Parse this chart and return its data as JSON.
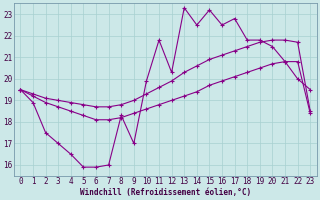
{
  "xlabel": "Windchill (Refroidissement éolien,°C)",
  "xlim": [
    -0.5,
    23.5
  ],
  "ylim": [
    15.5,
    23.5
  ],
  "xticks": [
    0,
    1,
    2,
    3,
    4,
    5,
    6,
    7,
    8,
    9,
    10,
    11,
    12,
    13,
    14,
    15,
    16,
    17,
    18,
    19,
    20,
    21,
    22,
    23
  ],
  "yticks": [
    16,
    17,
    18,
    19,
    20,
    21,
    22,
    23
  ],
  "bg_color": "#cce8e8",
  "line_color": "#880088",
  "grid_color": "#a8d0d0",
  "line1_y": [
    19.5,
    18.9,
    17.5,
    17.0,
    16.5,
    15.9,
    15.9,
    16.0,
    18.3,
    17.0,
    19.9,
    21.8,
    20.3,
    23.3,
    22.5,
    23.2,
    22.5,
    22.8,
    21.8,
    21.8,
    21.5,
    20.8,
    20.0,
    19.5
  ],
  "line2_y": [
    19.5,
    19.3,
    19.1,
    19.0,
    18.9,
    18.8,
    18.7,
    18.7,
    18.8,
    19.0,
    19.3,
    19.6,
    19.9,
    20.3,
    20.6,
    20.9,
    21.1,
    21.3,
    21.5,
    21.7,
    21.8,
    21.8,
    21.7,
    18.5
  ],
  "line3_y": [
    19.5,
    19.2,
    18.9,
    18.7,
    18.5,
    18.3,
    18.1,
    18.1,
    18.2,
    18.4,
    18.6,
    18.8,
    19.0,
    19.2,
    19.4,
    19.7,
    19.9,
    20.1,
    20.3,
    20.5,
    20.7,
    20.8,
    20.8,
    18.4
  ]
}
